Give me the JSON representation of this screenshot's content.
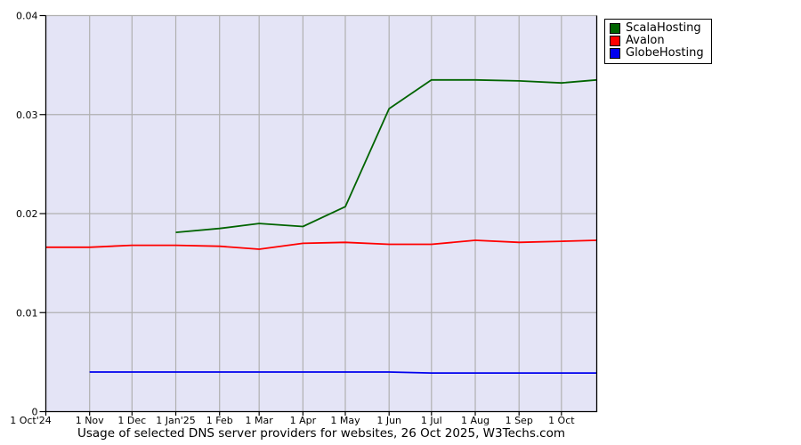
{
  "chart_data": {
    "type": "line",
    "title": "Usage of selected DNS server providers for websites, 26 Oct 2025, W3Techs.com",
    "xlabel": "",
    "ylabel": "",
    "ylim": [
      0,
      0.04
    ],
    "grid": true,
    "legend_position": "top-right-outside",
    "yticks": [
      0,
      0.01,
      0.02,
      0.03,
      0.04
    ],
    "ytick_labels": [
      "0",
      "0.01",
      "0.02",
      "0.03",
      "0.04"
    ],
    "x_dates": [
      "2024-10-01",
      "2024-11-01",
      "2024-12-01",
      "2025-01-01",
      "2025-02-01",
      "2025-03-01",
      "2025-04-01",
      "2025-05-01",
      "2025-06-01",
      "2025-07-01",
      "2025-08-01",
      "2025-09-01",
      "2025-10-01",
      "2025-10-26"
    ],
    "xtick_labels": [
      "1 Oct'24",
      "1 Nov",
      "1 Dec",
      "1 Jan'25",
      "1 Feb",
      "1 Mar",
      "1 Apr",
      "1 May",
      "1 Jun",
      "1 Jul",
      "1 Aug",
      "1 Sep",
      "1 Oct"
    ],
    "series": [
      {
        "name": "ScalaHosting",
        "color": "#006400",
        "values": [
          null,
          null,
          null,
          0.0181,
          0.0185,
          0.019,
          0.0187,
          0.0207,
          0.0306,
          0.0335,
          0.0335,
          0.0334,
          0.0332,
          0.0335
        ]
      },
      {
        "name": "Avalon",
        "color": "#ff0000",
        "values": [
          0.0166,
          0.0166,
          0.0168,
          0.0168,
          0.0167,
          0.0164,
          0.017,
          0.0171,
          0.0169,
          0.0169,
          0.0173,
          0.0171,
          0.0172,
          0.0173
        ]
      },
      {
        "name": "GlobeHosting",
        "color": "#0000ee",
        "values": [
          null,
          0.004,
          0.004,
          0.004,
          0.004,
          0.004,
          0.004,
          0.004,
          0.004,
          0.0039,
          0.0039,
          0.0039,
          0.0039,
          0.0039
        ]
      }
    ],
    "colors": {
      "plot_bg": "#e4e4f6",
      "grid": "#b0b0b0",
      "axis": "#000000",
      "page_bg": "#ffffff",
      "text": "#000000"
    }
  }
}
